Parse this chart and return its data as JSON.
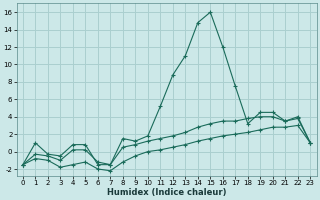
{
  "xlabel": "Humidex (Indice chaleur)",
  "background_color": "#cce8e8",
  "line_color": "#1a6b5a",
  "grid_color": "#aacfcf",
  "xlim": [
    -0.5,
    23.5
  ],
  "ylim": [
    -2.8,
    17.0
  ],
  "xticks": [
    0,
    1,
    2,
    3,
    4,
    5,
    6,
    7,
    8,
    9,
    10,
    11,
    12,
    13,
    14,
    15,
    16,
    17,
    18,
    19,
    20,
    21,
    22,
    23
  ],
  "yticks": [
    -2,
    0,
    2,
    4,
    6,
    8,
    10,
    12,
    14,
    16
  ],
  "line1_x": [
    0,
    1,
    2,
    3,
    4,
    5,
    6,
    7,
    8,
    9,
    10,
    11,
    12,
    13,
    14,
    15,
    16,
    17,
    18,
    19,
    20,
    21,
    22,
    23
  ],
  "line1_y": [
    -1.5,
    1.0,
    -0.3,
    -0.5,
    0.8,
    0.8,
    -1.5,
    -1.5,
    1.5,
    1.2,
    1.8,
    5.2,
    8.8,
    11.0,
    14.8,
    16.0,
    12.0,
    7.5,
    3.2,
    4.5,
    4.5,
    3.5,
    4.0,
    1.0
  ],
  "line2_x": [
    0,
    1,
    2,
    3,
    4,
    5,
    6,
    7,
    8,
    9,
    10,
    11,
    12,
    13,
    14,
    15,
    16,
    17,
    18,
    19,
    20,
    21,
    22,
    23
  ],
  "line2_y": [
    -1.5,
    -0.3,
    -0.5,
    -1.0,
    0.2,
    0.2,
    -1.2,
    -1.5,
    0.5,
    0.8,
    1.2,
    1.5,
    1.8,
    2.2,
    2.8,
    3.2,
    3.5,
    3.5,
    3.8,
    4.0,
    4.0,
    3.5,
    3.8,
    1.0
  ],
  "line3_x": [
    0,
    1,
    2,
    3,
    4,
    5,
    6,
    7,
    8,
    9,
    10,
    11,
    12,
    13,
    14,
    15,
    16,
    17,
    18,
    19,
    20,
    21,
    22,
    23
  ],
  "line3_y": [
    -1.5,
    -0.8,
    -1.0,
    -1.8,
    -1.5,
    -1.2,
    -2.0,
    -2.2,
    -1.2,
    -0.5,
    0.0,
    0.2,
    0.5,
    0.8,
    1.2,
    1.5,
    1.8,
    2.0,
    2.2,
    2.5,
    2.8,
    2.8,
    3.0,
    1.0
  ],
  "xlabel_fontsize": 6,
  "tick_fontsize": 5,
  "linewidth": 0.8,
  "markersize": 2.5
}
